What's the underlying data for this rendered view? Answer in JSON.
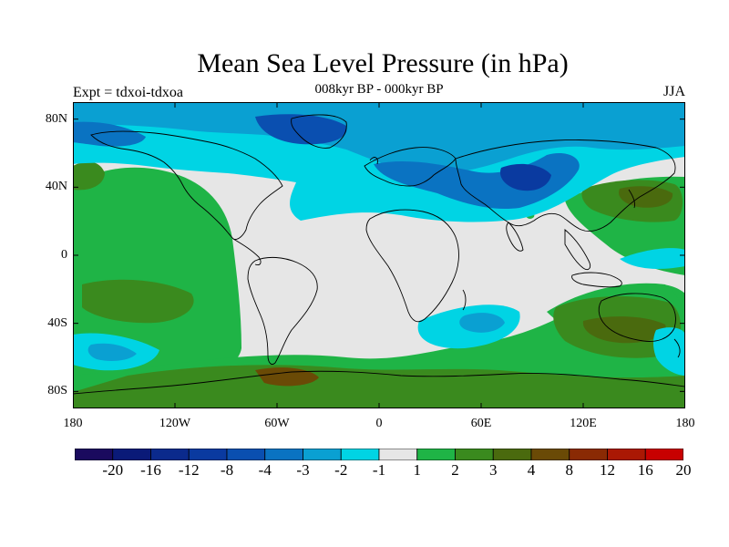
{
  "title": "Mean Sea Level Pressure (in hPa)",
  "subtitle": "008kyr BP - 000kyr BP",
  "expt_label": "Expt = tdxoi-tdxoa",
  "season": "JJA",
  "map": {
    "projection": "cylindrical-equidistant",
    "lon_range": [
      -180,
      180
    ],
    "lat_range": [
      -90,
      90
    ],
    "lat_ticks": [
      {
        "value": 80,
        "label": "80N"
      },
      {
        "value": 40,
        "label": "40N"
      },
      {
        "value": 0,
        "label": "0"
      },
      {
        "value": -40,
        "label": "40S"
      },
      {
        "value": -80,
        "label": "80S"
      }
    ],
    "lon_ticks": [
      {
        "value": -180,
        "label": "180"
      },
      {
        "value": -120,
        "label": "120W"
      },
      {
        "value": -60,
        "label": "60W"
      },
      {
        "value": 0,
        "label": "0"
      },
      {
        "value": 60,
        "label": "60E"
      },
      {
        "value": 120,
        "label": "120E"
      },
      {
        "value": 180,
        "label": "180"
      }
    ],
    "background_color": "#e6e6e6",
    "coastline_color": "#000000"
  },
  "colorbar": {
    "labels": [
      "-20",
      "-16",
      "-12",
      "-8",
      "-4",
      "-3",
      "-2",
      "-1",
      "1",
      "2",
      "3",
      "4",
      "8",
      "12",
      "16",
      "20"
    ],
    "colors": [
      "#1a0a5e",
      "#0a1a78",
      "#0b2a8c",
      "#0a3aa0",
      "#0a4fb0",
      "#0a73c2",
      "#0aa0d2",
      "#00d4e4",
      "#e6e6e6",
      "#1fb446",
      "#3a8a1e",
      "#4a6a0e",
      "#6a4a06",
      "#8a2a04",
      "#aa1804",
      "#c80000"
    ]
  }
}
